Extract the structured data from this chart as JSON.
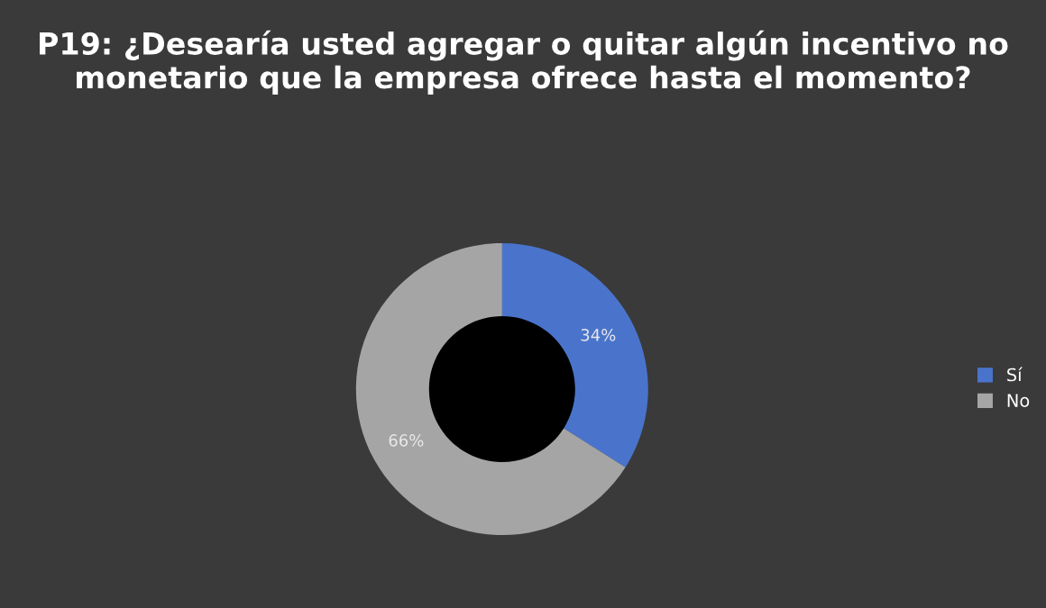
{
  "chart_data": {
    "type": "donut",
    "title": "P19: ¿Desearía usted agregar o quitar algún incentivo no monetario que la empresa ofrece hasta el momento?",
    "categories": [
      "Sí",
      "No"
    ],
    "values": [
      34,
      66
    ],
    "colors": [
      "#4a74cc",
      "#a5a5a5"
    ],
    "value_labels": [
      "34%",
      "66%"
    ],
    "legend": "right"
  }
}
